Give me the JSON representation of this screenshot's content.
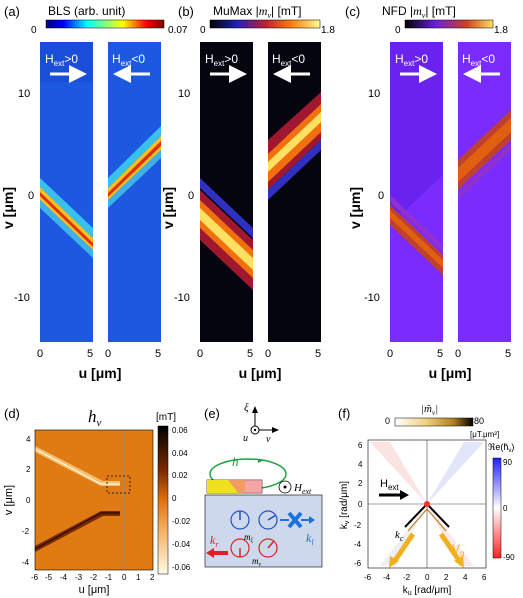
{
  "panels": {
    "a": {
      "label": "(a)",
      "title": "BLS (arb. unit)",
      "cbar_min": "0",
      "cbar_max": "0.07",
      "field_pos": "H",
      "field_pos_sub": "ext",
      "field_pos_rel": ">0",
      "field_neg": "H",
      "field_neg_sub": "ext",
      "field_neg_rel": "<0",
      "y_ticks": [
        "10",
        "0",
        "-10"
      ],
      "x_ticks": [
        "0",
        "5",
        "0",
        "5"
      ],
      "xlabel": "u [μm]",
      "ylabel": "v [μm]"
    },
    "b": {
      "label": "(b)",
      "title_pre": "MuMax |",
      "title_var": "m",
      "title_sub": "v",
      "title_post": "| [mT]",
      "cbar_min": "0",
      "cbar_max": "1.8",
      "field_pos": "H",
      "field_pos_sub": "ext",
      "field_pos_rel": ">0",
      "field_neg": "H",
      "field_neg_sub": "ext",
      "field_neg_rel": "<0",
      "y_ticks": [
        "10",
        "0",
        "-10"
      ],
      "x_ticks": [
        "0",
        "5",
        "0",
        "5"
      ],
      "xlabel": "u [μm]",
      "ylabel": "v [μm]"
    },
    "c": {
      "label": "(c)",
      "title_pre": "NFD |",
      "title_var": "m",
      "title_sub": "v",
      "title_post": "| [mT]",
      "cbar_min": "0",
      "cbar_max": "1.8",
      "field_pos": "H",
      "field_pos_sub": "ext",
      "field_pos_rel": ">0",
      "field_neg": "H",
      "field_neg_sub": "ext",
      "field_neg_rel": "<0",
      "y_ticks": [
        "10",
        "0",
        "-10"
      ],
      "x_ticks": [
        "0",
        "5",
        "0",
        "5"
      ],
      "xlabel": "u [μm]",
      "ylabel": "v [μm]"
    },
    "d": {
      "label": "(d)",
      "title_var": "h",
      "title_sub": "v",
      "unit": "[mT]",
      "cbar_ticks": [
        "0.06",
        "0.04",
        "0.02",
        "0",
        "-0.02",
        "-0.04",
        "-0.06"
      ],
      "y_ticks": [
        "4",
        "2",
        "0",
        "-2",
        "-4"
      ],
      "x_ticks": [
        "-6",
        "-5",
        "-4",
        "-3",
        "-2",
        "-1",
        "0",
        "1",
        "2"
      ],
      "xlabel": "u [μm]",
      "ylabel": "v [μm]"
    },
    "e": {
      "label": "(e)",
      "axis_xi": "ξ",
      "axis_u": "u",
      "axis_v": "v",
      "h_label": "h",
      "hext_label": "H",
      "hext_sub": "ext",
      "kr_label": "k",
      "kr_sub": "r",
      "kl_label": "k",
      "kl_sub": "l",
      "mxi_label": "m",
      "mxi_sub": "ξ",
      "mv_label": "m",
      "mv_sub": "v"
    },
    "f": {
      "label": "(f)",
      "cbar_title_pre": "|",
      "cbar_title_var": "m̃",
      "cbar_title_sub": "v",
      "cbar_title_post": "|",
      "cbar_min": "0",
      "cbar_max": "80",
      "cbar_unit": "[μT.μm²]",
      "re_label": "ℜe(h̃",
      "re_sub": "v",
      "re_post": ")",
      "re_ticks": [
        "90",
        "0",
        "-90"
      ],
      "hext": "H",
      "hext_sub": "ext",
      "kc_label": "k",
      "kc_sub": "c",
      "vg_label": "V",
      "vg_sub": "g",
      "y_ticks": [
        "6",
        "4",
        "2",
        "0",
        "-2",
        "-4",
        "-6"
      ],
      "x_ticks": [
        "-6",
        "-4",
        "-2",
        "0",
        "2",
        "4",
        "6"
      ],
      "xlabel": "k",
      "xlabel_sub": "u",
      "xlabel_unit": " [rad/μm]",
      "ylabel": "k",
      "ylabel_sub": "v",
      "ylabel_unit": " [rad/μm]"
    }
  },
  "colors": {
    "jet_dark": "#00007f",
    "bg_blue": "#1a5fe6",
    "hot_black": "#000000",
    "hot_mid": "#e06010",
    "hot_peak": "#ffff70",
    "purple_bg": "#7a2cff",
    "d_orange": "#e07010",
    "yellow_arrow": "#f0b020"
  }
}
